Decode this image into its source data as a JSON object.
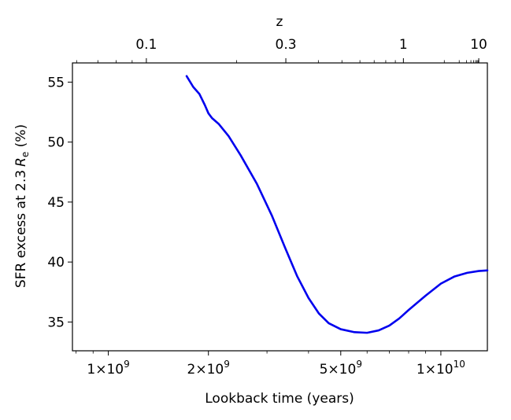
{
  "chart_data": {
    "type": "line",
    "title": "",
    "xlabel": "Lookback time (years)",
    "ylabel_parts": {
      "prefix": "SFR excess at 2.3",
      "symbol": "R",
      "subscript": "e",
      "suffix": " (%)"
    },
    "top_axis_label": "z",
    "x_scale": "log",
    "xlim": [
      780000000,
      13800000000
    ],
    "ylim": [
      32.6,
      56.6
    ],
    "x_ticks": [
      {
        "value": 1000000000,
        "mant": "1",
        "exp": "9"
      },
      {
        "value": 2000000000,
        "mant": "2",
        "exp": "9"
      },
      {
        "value": 5000000000,
        "mant": "5",
        "exp": "9"
      },
      {
        "value": 10000000000,
        "mant": "1",
        "exp": "10"
      }
    ],
    "y_ticks": [
      {
        "value": 35,
        "label": "35"
      },
      {
        "value": 40,
        "label": "40"
      },
      {
        "value": 45,
        "label": "45"
      },
      {
        "value": 50,
        "label": "50"
      },
      {
        "value": 55,
        "label": "55"
      }
    ],
    "top_ticks": [
      {
        "z": 0.1,
        "label": "0.1"
      },
      {
        "z": 0.3,
        "label": "0.3"
      },
      {
        "z": 1,
        "label": "1"
      },
      {
        "z": 10,
        "label": "10"
      }
    ],
    "top_minor_z": [
      0.06,
      0.07,
      0.08,
      0.09,
      0.2,
      0.4,
      0.5,
      0.6,
      0.7,
      0.8,
      0.9,
      2,
      3,
      4,
      5,
      6,
      7,
      8,
      9
    ],
    "grid": false,
    "series": [
      {
        "color": "#0000ee",
        "points": [
          [
            1720000000,
            55.5
          ],
          [
            1800000000,
            54.6
          ],
          [
            1880000000,
            54.0
          ],
          [
            1950000000,
            53.1
          ],
          [
            2000000000,
            52.4
          ],
          [
            2050000000,
            52.0
          ],
          [
            2150000000,
            51.5
          ],
          [
            2300000000,
            50.5
          ],
          [
            2500000000,
            48.9
          ],
          [
            2800000000,
            46.5
          ],
          [
            3100000000,
            43.9
          ],
          [
            3400000000,
            41.2
          ],
          [
            3700000000,
            38.8
          ],
          [
            4000000000,
            37.0
          ],
          [
            4300000000,
            35.7
          ],
          [
            4600000000,
            34.9
          ],
          [
            5000000000,
            34.4
          ],
          [
            5500000000,
            34.15
          ],
          [
            6000000000,
            34.1
          ],
          [
            6500000000,
            34.3
          ],
          [
            7000000000,
            34.7
          ],
          [
            7500000000,
            35.3
          ],
          [
            8000000000,
            36.0
          ],
          [
            9000000000,
            37.2
          ],
          [
            10000000000,
            38.2
          ],
          [
            11000000000,
            38.8
          ],
          [
            12000000000,
            39.1
          ],
          [
            13000000000,
            39.25
          ],
          [
            13800000000,
            39.3
          ]
        ]
      }
    ]
  }
}
